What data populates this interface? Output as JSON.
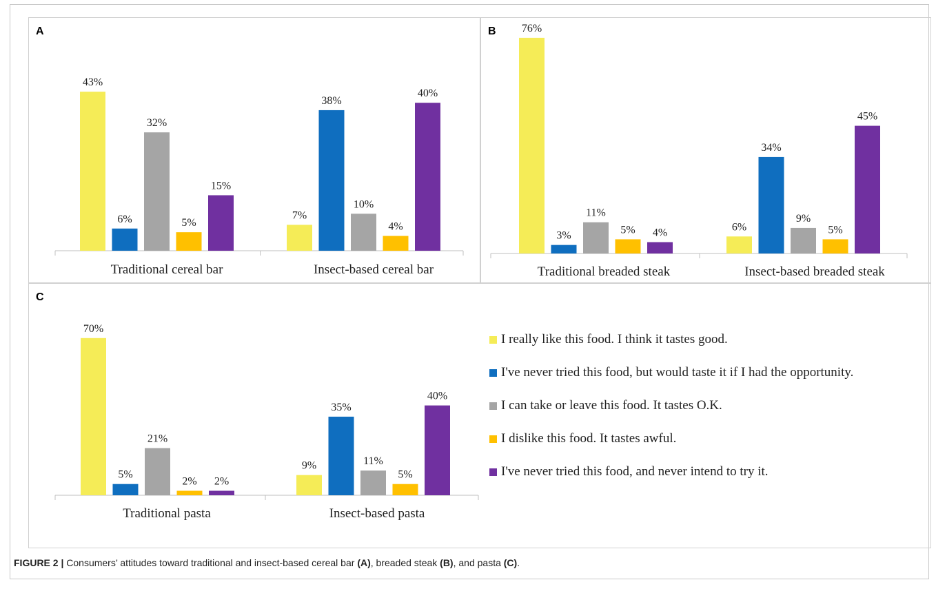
{
  "colors": [
    "#F5EC57",
    "#0F6EBF",
    "#A5A5A5",
    "#FFC000",
    "#7030A0"
  ],
  "legend": [
    "I really like this food. I think it tastes good.",
    "I've never tried this food, but would taste it if I had the opportunity.",
    "I can take or leave this food. It tastes O.K.",
    "I dislike this food. It tastes awful.",
    "I've never tried this food, and never intend to try it."
  ],
  "caption": {
    "label": "FIGURE 2 |",
    "text_1": " Consumers’ attitudes toward traditional and insect-based cereal bar ",
    "ref_a": "(A)",
    "text_2": ", breaded steak ",
    "ref_b": "(B)",
    "text_3": ", and pasta ",
    "ref_c": "(C)",
    "text_4": "."
  },
  "chart_data": [
    {
      "panel": "A",
      "type": "bar",
      "categories": [
        "Traditional cereal bar",
        "Insect-based cereal bar"
      ],
      "series": [
        {
          "values": [
            43,
            7
          ]
        },
        {
          "values": [
            6,
            38
          ]
        },
        {
          "values": [
            32,
            10
          ]
        },
        {
          "values": [
            5,
            4
          ]
        },
        {
          "values": [
            15,
            40
          ]
        }
      ],
      "unit": "%",
      "grid": false
    },
    {
      "panel": "B",
      "type": "bar",
      "categories": [
        "Traditional breaded steak",
        "Insect-based breaded steak"
      ],
      "series": [
        {
          "values": [
            76,
            6
          ]
        },
        {
          "values": [
            3,
            34
          ]
        },
        {
          "values": [
            11,
            9
          ]
        },
        {
          "values": [
            5,
            5
          ]
        },
        {
          "values": [
            4,
            45
          ]
        }
      ],
      "unit": "%",
      "grid": false
    },
    {
      "panel": "C",
      "type": "bar",
      "categories": [
        "Traditional pasta",
        "Insect-based pasta"
      ],
      "series": [
        {
          "values": [
            70,
            9
          ]
        },
        {
          "values": [
            5,
            35
          ]
        },
        {
          "values": [
            21,
            11
          ]
        },
        {
          "values": [
            2,
            5
          ]
        },
        {
          "values": [
            2,
            40
          ]
        }
      ],
      "unit": "%",
      "grid": false
    }
  ]
}
